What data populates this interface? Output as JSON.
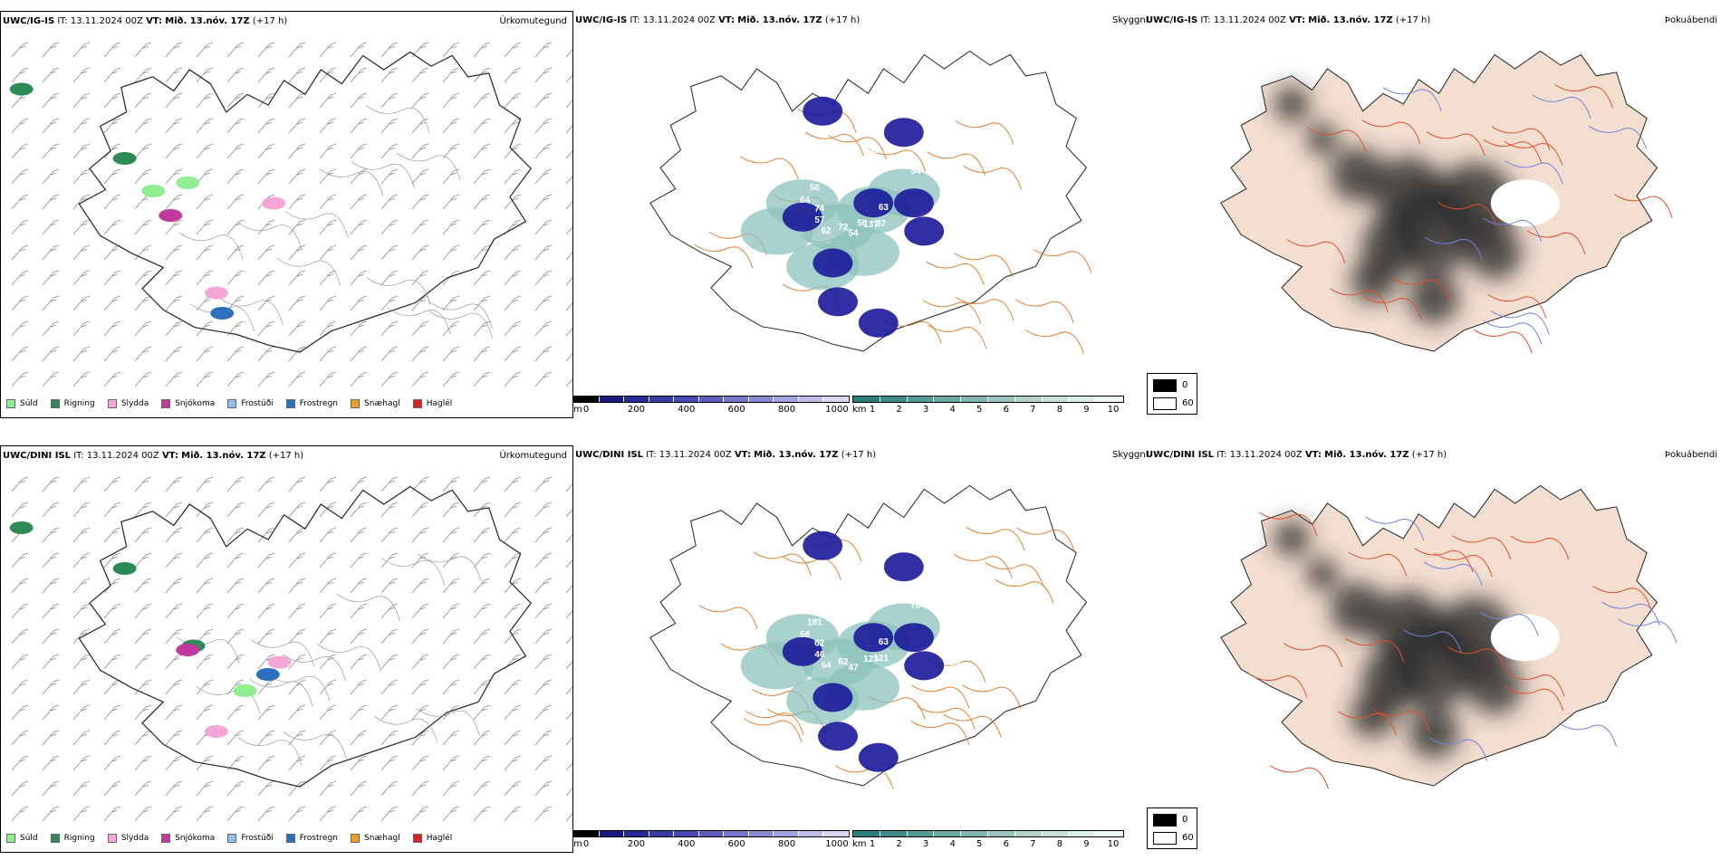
{
  "panels": {
    "top": {
      "precip": {
        "model": "UWC/IG-IS",
        "it": "IT: 13.11.2024 00Z",
        "vt_label": "VT:",
        "vt": "Mið. 13.nóv. 17Z",
        "lead": "(+17 h)",
        "type": "Úrkomutegund"
      },
      "vis": {
        "model": "UWC/IG-IS",
        "it": "IT: 13.11.2024 00Z",
        "vt_label": "VT:",
        "vt": "Mið. 13.nóv. 17Z",
        "lead": "(+17 h)",
        "type": "Skyggni"
      },
      "fog": {
        "model": "UWC/IG-IS",
        "it": "IT: 13.11.2024 00Z",
        "vt_label": "VT:",
        "vt": "Mið. 13.nóv. 17Z",
        "lead": "(+17 h)",
        "type": "Þokuábendi"
      }
    },
    "bottom": {
      "precip": {
        "model": "UWC/DINI ISL",
        "it": "IT: 13.11.2024 00Z",
        "vt_label": "VT:",
        "vt": "Mið. 13.nóv. 17Z",
        "lead": "(+17 h)",
        "type": "Úrkomutegund"
      },
      "vis": {
        "model": "UWC/DINI ISL",
        "it": "IT: 13.11.2024 00Z",
        "vt_label": "VT:",
        "vt": "Mið. 13.nóv. 17Z",
        "lead": "(+17 h)",
        "type": "Skyggni"
      },
      "fog": {
        "model": "UWC/DINI ISL",
        "it": "IT: 13.11.2024 00Z",
        "vt_label": "VT:",
        "vt": "Mið. 13.nóv. 17Z",
        "lead": "(+17 h)",
        "type": "Þokuábendi"
      }
    }
  },
  "precip_legend": [
    {
      "label": "Súld",
      "color": "#90ee90"
    },
    {
      "label": "Rigning",
      "color": "#2e8b57"
    },
    {
      "label": "Slydda",
      "color": "#f4a6d7"
    },
    {
      "label": "Snjókoma",
      "color": "#c0399f"
    },
    {
      "label": "Frostúði",
      "color": "#8fbfef"
    },
    {
      "label": "Frostregn",
      "color": "#2f6fbf"
    },
    {
      "label": "Snæhagl",
      "color": "#f0a020"
    },
    {
      "label": "Haglél",
      "color": "#e02020"
    }
  ],
  "vis_scale_m": {
    "unit": "m",
    "ticks": [
      "0",
      "200",
      "400",
      "600",
      "800",
      "1000"
    ],
    "colors": [
      "#000000",
      "#1a1a80",
      "#2a2a9a",
      "#3a3aa8",
      "#4a4ab4",
      "#5e5ebe",
      "#7474c8",
      "#8a8ad2",
      "#a2a2dc",
      "#bcbce6",
      "#d6d6f0"
    ]
  },
  "vis_scale_km": {
    "unit": "km",
    "ticks": [
      "1",
      "2",
      "3",
      "4",
      "5",
      "6",
      "7",
      "8",
      "9",
      "10"
    ],
    "colors": [
      "#2a7f7a",
      "#3e8c86",
      "#539a94",
      "#6aa8a2",
      "#82b6b0",
      "#9ac4be",
      "#b2d2cc",
      "#c8e0da",
      "#dceee8",
      "#eef6f4"
    ]
  },
  "fog_legend": [
    {
      "label": "0",
      "color": "#000000"
    },
    {
      "label": "60",
      "color": "#ffffff"
    }
  ],
  "vis_labels": {
    "top": [
      "63",
      "62",
      "100",
      "87",
      "64",
      "51",
      "54",
      "54",
      "53",
      "57",
      "59",
      "137",
      "56",
      "59",
      "72",
      "143",
      "79",
      "74",
      "54",
      "50",
      "97"
    ],
    "bottom": [
      "63",
      "64",
      "84",
      "121",
      "58",
      "57",
      "47",
      "50",
      "44",
      "46",
      "52",
      "123",
      "181",
      "94",
      "62",
      "63",
      "75",
      "62",
      "78"
    ]
  }
}
